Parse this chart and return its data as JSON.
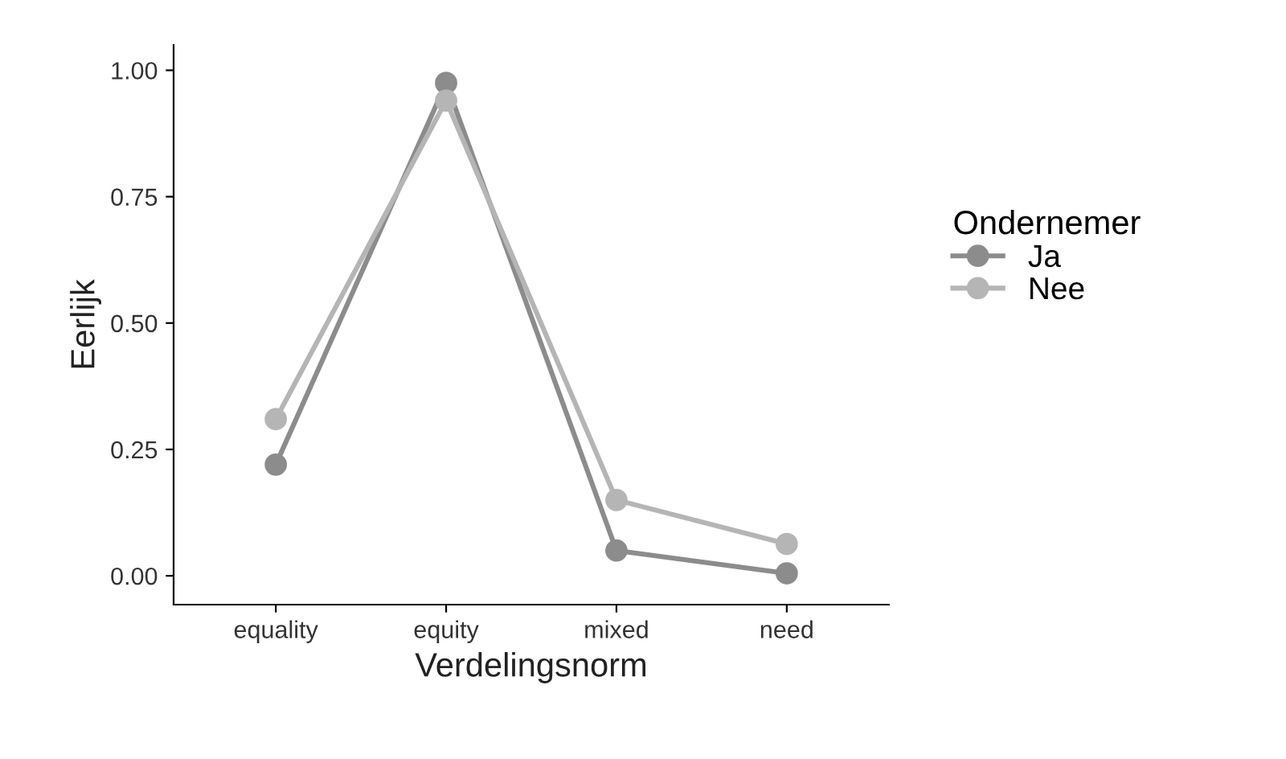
{
  "chart_data": {
    "type": "line",
    "xlabel": "Verdelingsnorm",
    "ylabel": "Eerlijk",
    "legend_title": "Ondernemer",
    "categories": [
      "equality",
      "equity",
      "mixed",
      "need"
    ],
    "series": [
      {
        "name": "Ja",
        "color": "#8c8c8c",
        "values": [
          0.22,
          0.975,
          0.05,
          0.005
        ]
      },
      {
        "name": "Nee",
        "color": "#b5b5b5",
        "values": [
          0.31,
          0.94,
          0.15,
          0.063
        ]
      }
    ],
    "ylim": [
      -0.057,
      1.05
    ],
    "yticks": [
      {
        "value": 0,
        "label": "0.00"
      },
      {
        "value": 0.25,
        "label": "0.25"
      },
      {
        "value": 0.5,
        "label": "0.50"
      },
      {
        "value": 0.75,
        "label": "0.75"
      },
      {
        "value": 1,
        "label": "1.00"
      }
    ],
    "grid": false,
    "legend": "right",
    "marker": "circle",
    "line_style": "solid"
  }
}
